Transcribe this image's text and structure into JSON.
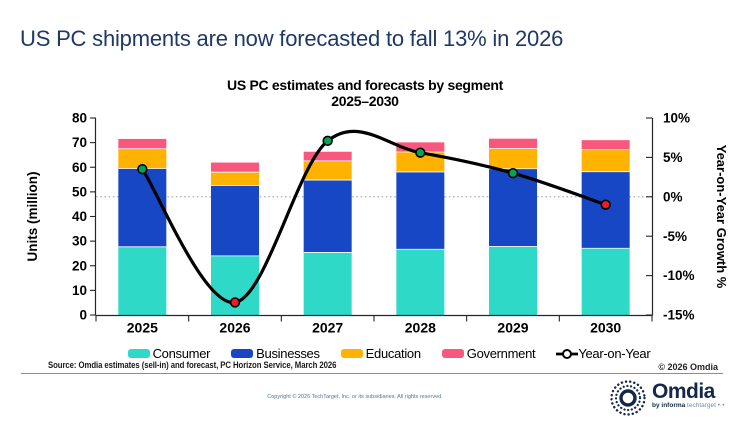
{
  "headline": "US PC shipments are now forecasted to fall 13% in 2026",
  "chart_data": {
    "type": "combo_stacked_bar_line",
    "title": "US PC estimates and forecasts by segment",
    "subtitle": "2025–2030",
    "categories": [
      "2025",
      "2026",
      "2027",
      "2028",
      "2029",
      "2030"
    ],
    "series": [
      {
        "name": "Consumer",
        "color": "#2FD9C8",
        "values": [
          27.7,
          24.0,
          25.4,
          26.7,
          27.8,
          27.1
        ]
      },
      {
        "name": "Businesses",
        "color": "#1847C6",
        "values": [
          31.8,
          28.6,
          29.4,
          31.4,
          31.6,
          31.1
        ]
      },
      {
        "name": "Education",
        "color": "#FFB200",
        "values": [
          8.0,
          5.4,
          7.8,
          8.1,
          8.2,
          8.9
        ]
      },
      {
        "name": "Government",
        "color": "#F8587E",
        "values": [
          4.0,
          3.9,
          3.7,
          3.9,
          4.0,
          3.9
        ]
      }
    ],
    "line_series": {
      "name": "Year-on-Year",
      "values": [
        3.5,
        -13.4,
        7.1,
        5.6,
        3.0,
        -1.0
      ],
      "line_color": "#000000",
      "marker_colors": [
        "#00A651",
        "#EE1C25",
        "#00A651",
        "#00A651",
        "#00A651",
        "#EE1C25"
      ]
    },
    "left_axis": {
      "label": "Units (million)",
      "min": 0,
      "max": 80,
      "step": 10
    },
    "right_axis": {
      "label": "Year-on-Year Growth %",
      "min": -15,
      "max": 10,
      "step": 5,
      "suffix": "%"
    },
    "zero_line": 0,
    "legend_position": "bottom"
  },
  "source_note": "Source: Omdia estimates (sell-in) and forecast, PC Horizon Service, March 2026",
  "omdia_copyright": "© 2026 Omdia",
  "footer_copyright": "Copyright © 2026 TechTarget, Inc. or its subsidiaries. All rights reserved.",
  "logo": {
    "wordmark": "Omdia",
    "tagline_by": "by ",
    "tagline_informa": "informa",
    "tagline_rest": " techtarget •·•"
  }
}
